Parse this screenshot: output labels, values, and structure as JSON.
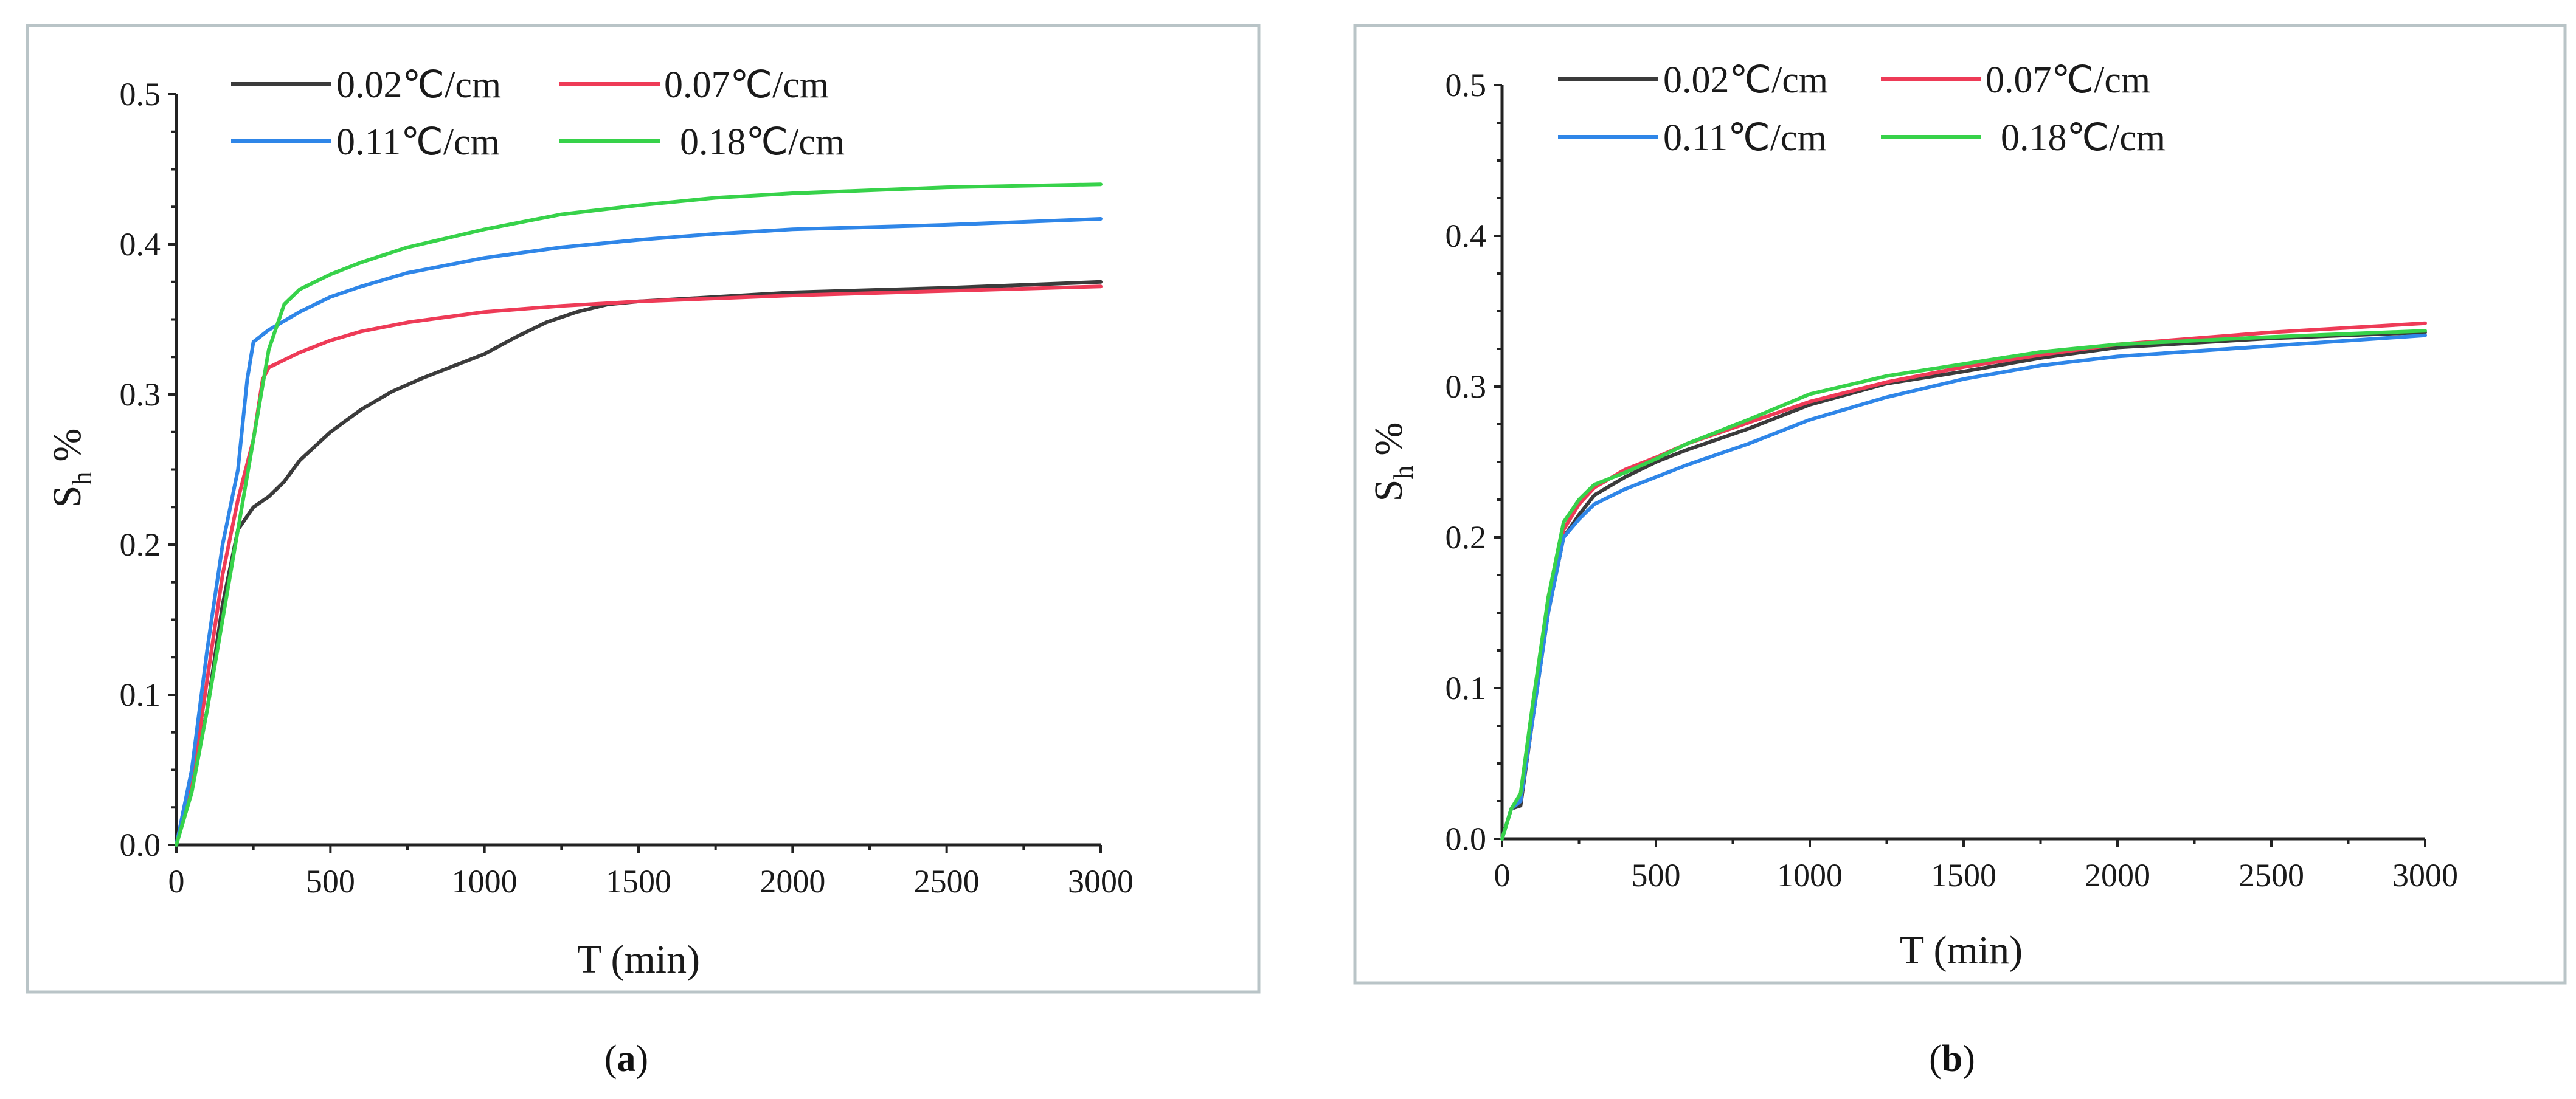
{
  "colors": {
    "s002": "#3b3b3b",
    "s007": "#ee3b57",
    "s011": "#2f86e8",
    "s018": "#37d24a"
  },
  "chart_data": [
    {
      "id": "a",
      "type": "line",
      "caption_open": "(",
      "caption_letter": "a",
      "caption_close": ")",
      "xlabel": "T (min)",
      "ylabel_main": "S",
      "ylabel_sub": "h",
      "ylabel_unit": "%",
      "xlim": [
        0,
        3000
      ],
      "ylim": [
        0,
        0.5
      ],
      "xticks": [
        0,
        500,
        1000,
        1500,
        2000,
        2500,
        3000
      ],
      "xtick_labels": [
        "0",
        "500",
        "1000",
        "1500",
        "2000",
        "2500",
        "3000"
      ],
      "yticks": [
        0,
        0.1,
        0.2,
        0.3,
        0.4,
        0.5
      ],
      "ytick_labels": [
        "0.0",
        "0.1",
        "0.2",
        "0.3",
        "0.4",
        "0.5"
      ],
      "legend_position": "top",
      "series": [
        {
          "name": "0.02℃/cm",
          "color_key": "s002",
          "points": [
            [
              0,
              0
            ],
            [
              50,
              0.04
            ],
            [
              100,
              0.09
            ],
            [
              150,
              0.16
            ],
            [
              200,
              0.21
            ],
            [
              250,
              0.225
            ],
            [
              300,
              0.232
            ],
            [
              350,
              0.242
            ],
            [
              400,
              0.256
            ],
            [
              500,
              0.275
            ],
            [
              600,
              0.29
            ],
            [
              700,
              0.302
            ],
            [
              800,
              0.311
            ],
            [
              900,
              0.319
            ],
            [
              1000,
              0.327
            ],
            [
              1100,
              0.338
            ],
            [
              1200,
              0.348
            ],
            [
              1300,
              0.355
            ],
            [
              1400,
              0.36
            ],
            [
              1500,
              0.362
            ],
            [
              1750,
              0.365
            ],
            [
              2000,
              0.368
            ],
            [
              2500,
              0.371
            ],
            [
              3000,
              0.375
            ]
          ]
        },
        {
          "name": "0.07℃/cm",
          "color_key": "s007",
          "points": [
            [
              0,
              0
            ],
            [
              50,
              0.04
            ],
            [
              100,
              0.11
            ],
            [
              150,
              0.18
            ],
            [
              200,
              0.23
            ],
            [
              250,
              0.27
            ],
            [
              280,
              0.31
            ],
            [
              300,
              0.318
            ],
            [
              400,
              0.328
            ],
            [
              500,
              0.336
            ],
            [
              600,
              0.342
            ],
            [
              750,
              0.348
            ],
            [
              1000,
              0.355
            ],
            [
              1250,
              0.359
            ],
            [
              1500,
              0.362
            ],
            [
              2000,
              0.366
            ],
            [
              2500,
              0.369
            ],
            [
              3000,
              0.372
            ]
          ]
        },
        {
          "name": "0.11℃/cm",
          "color_key": "s011",
          "points": [
            [
              0,
              0
            ],
            [
              50,
              0.05
            ],
            [
              100,
              0.13
            ],
            [
              150,
              0.2
            ],
            [
              200,
              0.25
            ],
            [
              230,
              0.31
            ],
            [
              250,
              0.335
            ],
            [
              300,
              0.343
            ],
            [
              400,
              0.355
            ],
            [
              500,
              0.365
            ],
            [
              600,
              0.372
            ],
            [
              750,
              0.381
            ],
            [
              1000,
              0.391
            ],
            [
              1250,
              0.398
            ],
            [
              1500,
              0.403
            ],
            [
              1750,
              0.407
            ],
            [
              2000,
              0.41
            ],
            [
              2500,
              0.413
            ],
            [
              3000,
              0.417
            ]
          ]
        },
        {
          "name": "0.18℃/cm",
          "color_key": "s018",
          "points": [
            [
              0,
              0
            ],
            [
              50,
              0.035
            ],
            [
              100,
              0.09
            ],
            [
              150,
              0.15
            ],
            [
              200,
              0.21
            ],
            [
              250,
              0.27
            ],
            [
              300,
              0.33
            ],
            [
              350,
              0.36
            ],
            [
              400,
              0.37
            ],
            [
              500,
              0.38
            ],
            [
              600,
              0.388
            ],
            [
              750,
              0.398
            ],
            [
              1000,
              0.41
            ],
            [
              1250,
              0.42
            ],
            [
              1500,
              0.426
            ],
            [
              1750,
              0.431
            ],
            [
              2000,
              0.434
            ],
            [
              2500,
              0.438
            ],
            [
              3000,
              0.44
            ]
          ]
        }
      ]
    },
    {
      "id": "b",
      "type": "line",
      "caption_open": "(",
      "caption_letter": "b",
      "caption_close": ")",
      "xlabel": "T (min)",
      "ylabel_main": "S",
      "ylabel_sub": "h",
      "ylabel_unit": "%",
      "xlim": [
        0,
        3000
      ],
      "ylim": [
        0,
        0.5
      ],
      "xticks": [
        0,
        500,
        1000,
        1500,
        2000,
        2500,
        3000
      ],
      "xtick_labels": [
        "0",
        "500",
        "1000",
        "1500",
        "2000",
        "2500",
        "3000"
      ],
      "yticks": [
        0,
        0.1,
        0.2,
        0.3,
        0.4,
        0.5
      ],
      "ytick_labels": [
        "0.0",
        "0.1",
        "0.2",
        "0.3",
        "0.4",
        "0.5"
      ],
      "legend_position": "top",
      "series": [
        {
          "name": "0.02℃/cm",
          "color_key": "s002",
          "points": [
            [
              0,
              0
            ],
            [
              30,
              0.02
            ],
            [
              60,
              0.022
            ],
            [
              100,
              0.08
            ],
            [
              150,
              0.15
            ],
            [
              200,
              0.2
            ],
            [
              250,
              0.215
            ],
            [
              300,
              0.228
            ],
            [
              400,
              0.24
            ],
            [
              500,
              0.25
            ],
            [
              600,
              0.258
            ],
            [
              800,
              0.272
            ],
            [
              1000,
              0.288
            ],
            [
              1250,
              0.302
            ],
            [
              1500,
              0.31
            ],
            [
              1750,
              0.319
            ],
            [
              2000,
              0.326
            ],
            [
              2500,
              0.332
            ],
            [
              3000,
              0.336
            ]
          ]
        },
        {
          "name": "0.07℃/cm",
          "color_key": "s007",
          "points": [
            [
              0,
              0
            ],
            [
              30,
              0.02
            ],
            [
              60,
              0.025
            ],
            [
              100,
              0.08
            ],
            [
              150,
              0.16
            ],
            [
              200,
              0.205
            ],
            [
              250,
              0.222
            ],
            [
              300,
              0.233
            ],
            [
              400,
              0.245
            ],
            [
              500,
              0.253
            ],
            [
              600,
              0.262
            ],
            [
              800,
              0.276
            ],
            [
              1000,
              0.29
            ],
            [
              1250,
              0.303
            ],
            [
              1500,
              0.313
            ],
            [
              1750,
              0.321
            ],
            [
              2000,
              0.328
            ],
            [
              2500,
              0.336
            ],
            [
              3000,
              0.342
            ]
          ]
        },
        {
          "name": "0.11℃/cm",
          "color_key": "s011",
          "points": [
            [
              0,
              0
            ],
            [
              30,
              0.02
            ],
            [
              60,
              0.025
            ],
            [
              100,
              0.08
            ],
            [
              150,
              0.15
            ],
            [
              200,
              0.2
            ],
            [
              250,
              0.212
            ],
            [
              300,
              0.222
            ],
            [
              400,
              0.232
            ],
            [
              500,
              0.24
            ],
            [
              600,
              0.248
            ],
            [
              800,
              0.262
            ],
            [
              1000,
              0.278
            ],
            [
              1250,
              0.293
            ],
            [
              1500,
              0.305
            ],
            [
              1750,
              0.314
            ],
            [
              2000,
              0.32
            ],
            [
              2500,
              0.327
            ],
            [
              3000,
              0.334
            ]
          ]
        },
        {
          "name": "0.18℃/cm",
          "color_key": "s018",
          "points": [
            [
              0,
              0
            ],
            [
              30,
              0.02
            ],
            [
              60,
              0.03
            ],
            [
              100,
              0.09
            ],
            [
              150,
              0.16
            ],
            [
              200,
              0.21
            ],
            [
              250,
              0.225
            ],
            [
              300,
              0.235
            ],
            [
              400,
              0.243
            ],
            [
              500,
              0.252
            ],
            [
              600,
              0.262
            ],
            [
              800,
              0.278
            ],
            [
              1000,
              0.295
            ],
            [
              1250,
              0.307
            ],
            [
              1500,
              0.315
            ],
            [
              1750,
              0.323
            ],
            [
              2000,
              0.328
            ],
            [
              2500,
              0.333
            ],
            [
              3000,
              0.337
            ]
          ]
        }
      ]
    }
  ]
}
